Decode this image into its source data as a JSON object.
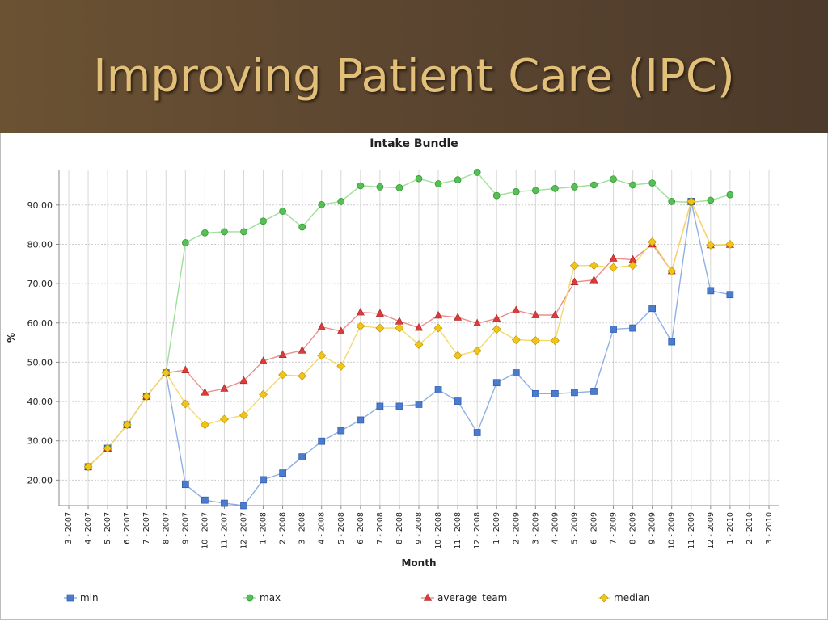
{
  "slide": {
    "title": "Improving Patient Care (IPC)"
  },
  "colors": {
    "header_bg": "#5b4530",
    "title": "#e2c07a",
    "min": "#4a7bcf",
    "max": "#55c155",
    "average_team": "#dd3b3b",
    "median": "#f2c418"
  },
  "chart_data": {
    "type": "line",
    "title": "Intake Bundle",
    "xlabel": "Month",
    "ylabel": "%",
    "ylim": [
      13.5,
      99
    ],
    "yticks": [
      "20.00",
      "30.00",
      "40.00",
      "50.00",
      "60.00",
      "70.00",
      "80.00",
      "90.00"
    ],
    "ytick_values": [
      20,
      30,
      40,
      50,
      60,
      70,
      80,
      90
    ],
    "grid": true,
    "legend_position": "bottom",
    "categories": [
      "3 - 2007",
      "4 - 2007",
      "5 - 2007",
      "6 - 2007",
      "7 - 2007",
      "8 - 2007",
      "9 - 2007",
      "10 - 2007",
      "11 - 2007",
      "12 - 2007",
      "1 - 2008",
      "2 - 2008",
      "3 - 2008",
      "4 - 2008",
      "5 - 2008",
      "6 - 2008",
      "7 - 2008",
      "8 - 2008",
      "9 - 2008",
      "10 - 2008",
      "11 - 2008",
      "12 - 2008",
      "1 - 2009",
      "2 - 2009",
      "3 - 2009",
      "4 - 2009",
      "5 - 2009",
      "6 - 2009",
      "7 - 2009",
      "8 - 2009",
      "9 - 2009",
      "10 - 2009",
      "11 - 2009",
      "12 - 2009",
      "1 - 2010",
      "2 - 2010",
      "3 - 2010"
    ],
    "series": [
      {
        "name": "min",
        "color": "#4a7bcf",
        "line": "#8fb0e3",
        "marker": "square",
        "values": [
          null,
          23.4,
          28.1,
          34.1,
          41.3,
          47.3,
          18.9,
          14.9,
          14.1,
          13.5,
          20.1,
          21.8,
          25.9,
          29.9,
          32.6,
          35.3,
          38.8,
          38.8,
          39.3,
          43.0,
          40.1,
          32.1,
          44.8,
          47.3,
          42.0,
          42.0,
          42.3,
          42.6,
          58.4,
          58.7,
          63.7,
          55.2,
          90.9,
          68.2,
          67.2,
          null,
          null
        ]
      },
      {
        "name": "max",
        "color": "#55c155",
        "line": "#9ee09a",
        "marker": "circle",
        "values": [
          null,
          23.4,
          28.1,
          34.1,
          41.3,
          47.3,
          80.4,
          82.9,
          83.2,
          83.2,
          85.9,
          88.4,
          84.4,
          90.1,
          90.9,
          94.9,
          94.6,
          94.4,
          96.7,
          95.4,
          96.4,
          98.3,
          92.4,
          93.4,
          93.7,
          94.2,
          94.6,
          95.1,
          96.6,
          95.1,
          95.6,
          90.9,
          90.7,
          91.2,
          92.6,
          null,
          null
        ]
      },
      {
        "name": "average_team",
        "color": "#dd3b3b",
        "line": "#ec8d8d",
        "marker": "triangle",
        "values": [
          null,
          23.4,
          28.1,
          34.1,
          41.3,
          47.3,
          48.0,
          42.3,
          43.3,
          45.3,
          50.3,
          51.9,
          53.0,
          59.0,
          57.9,
          62.7,
          62.4,
          60.4,
          58.8,
          61.9,
          61.4,
          59.9,
          61.1,
          63.2,
          62.0,
          62.0,
          70.4,
          70.9,
          76.4,
          76.1,
          80.0,
          73.2,
          90.9,
          79.8,
          79.9,
          null,
          null
        ]
      },
      {
        "name": "median",
        "color": "#f2c418",
        "line": "#f4d96a",
        "marker": "diamond",
        "values": [
          null,
          23.4,
          28.1,
          34.1,
          41.3,
          47.3,
          39.4,
          34.1,
          35.5,
          36.5,
          41.8,
          46.8,
          46.5,
          51.7,
          49.0,
          59.2,
          58.7,
          58.7,
          54.5,
          58.7,
          51.7,
          52.9,
          58.4,
          55.7,
          55.5,
          55.5,
          74.6,
          74.6,
          74.1,
          74.6,
          80.6,
          73.2,
          90.9,
          79.8,
          80.0,
          null,
          null
        ]
      }
    ]
  }
}
